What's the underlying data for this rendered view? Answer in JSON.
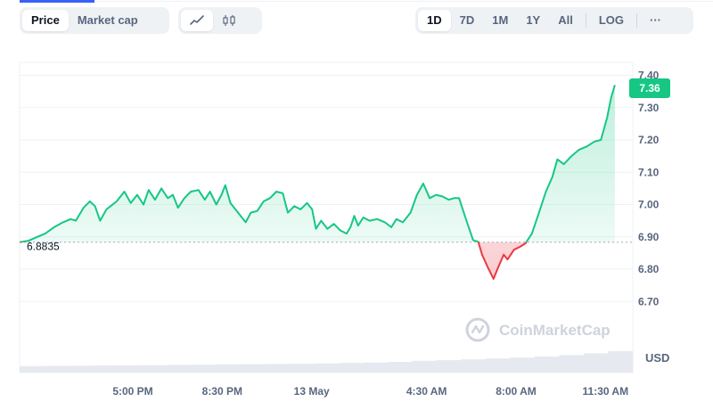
{
  "controls": {
    "metric_tabs": [
      "Price",
      "Market cap"
    ],
    "metric_active": "Price",
    "chart_types": [
      {
        "name": "line-chart",
        "icon": "line-chart-icon"
      },
      {
        "name": "candlestick-chart",
        "icon": "candlestick-icon"
      }
    ],
    "chart_type_active": "line-chart",
    "ranges": [
      "1D",
      "7D",
      "1M",
      "1Y",
      "All"
    ],
    "range_active": "1D",
    "log_label": "LOG",
    "more_label": "···"
  },
  "watermark": "CoinMarketCap",
  "colors": {
    "up_line": "#16c784",
    "down_line": "#ea3943",
    "up_fill": "#16c784",
    "down_fill": "#ea3943",
    "baseline": "#a1a7bb",
    "grid": "#eff2f5",
    "current_badge": "#16c784",
    "volume": "#e6e9ef"
  },
  "chart_data": {
    "type": "line",
    "currency_label": "USD",
    "open_price": 6.8835,
    "open_price_label": "6.8835",
    "current_price": 7.36,
    "current_price_label": "7.36",
    "ylim": [
      6.64,
      7.44
    ],
    "yticks": [
      6.7,
      6.8,
      6.9,
      7.0,
      7.1,
      7.2,
      7.3,
      7.4
    ],
    "ytick_labels": [
      "6.70",
      "6.80",
      "6.90",
      "7.00",
      "7.10",
      "7.20",
      "7.30",
      "7.40"
    ],
    "xlim": [
      0,
      24
    ],
    "xticks": [
      {
        "x": 4.43,
        "label": "5:00 PM"
      },
      {
        "x": 7.93,
        "label": "8:30 PM"
      },
      {
        "x": 11.43,
        "label": "13 May"
      },
      {
        "x": 15.93,
        "label": "4:30 AM"
      },
      {
        "x": 19.43,
        "label": "8:00 AM"
      },
      {
        "x": 22.93,
        "label": "11:30 AM"
      }
    ],
    "grid": true,
    "series": [
      {
        "values": [
          [
            0.0,
            6.8835
          ],
          [
            0.35,
            6.888
          ],
          [
            0.7,
            6.9
          ],
          [
            1.0,
            6.91
          ],
          [
            1.35,
            6.93
          ],
          [
            1.7,
            6.945
          ],
          [
            2.0,
            6.955
          ],
          [
            2.2,
            6.95
          ],
          [
            2.5,
            6.99
          ],
          [
            2.75,
            7.01
          ],
          [
            2.95,
            6.995
          ],
          [
            3.15,
            6.95
          ],
          [
            3.4,
            6.985
          ],
          [
            3.8,
            7.01
          ],
          [
            4.1,
            7.04
          ],
          [
            4.35,
            7.005
          ],
          [
            4.6,
            7.03
          ],
          [
            4.85,
            7.0
          ],
          [
            5.05,
            7.045
          ],
          [
            5.3,
            7.015
          ],
          [
            5.55,
            7.05
          ],
          [
            5.8,
            7.02
          ],
          [
            6.0,
            7.03
          ],
          [
            6.2,
            6.99
          ],
          [
            6.45,
            7.02
          ],
          [
            6.7,
            7.04
          ],
          [
            7.0,
            7.045
          ],
          [
            7.25,
            7.015
          ],
          [
            7.45,
            7.04
          ],
          [
            7.7,
            7.0
          ],
          [
            7.9,
            7.03
          ],
          [
            8.05,
            7.06
          ],
          [
            8.25,
            7.005
          ],
          [
            8.45,
            6.985
          ],
          [
            8.65,
            6.965
          ],
          [
            8.85,
            6.945
          ],
          [
            9.05,
            6.975
          ],
          [
            9.3,
            6.98
          ],
          [
            9.55,
            7.01
          ],
          [
            9.8,
            7.02
          ],
          [
            10.05,
            7.04
          ],
          [
            10.3,
            7.035
          ],
          [
            10.5,
            6.975
          ],
          [
            10.75,
            6.995
          ],
          [
            11.0,
            6.985
          ],
          [
            11.25,
            7.005
          ],
          [
            11.45,
            6.985
          ],
          [
            11.6,
            6.925
          ],
          [
            11.8,
            6.95
          ],
          [
            12.05,
            6.925
          ],
          [
            12.3,
            6.94
          ],
          [
            12.55,
            6.92
          ],
          [
            12.8,
            6.91
          ],
          [
            12.95,
            6.93
          ],
          [
            13.1,
            6.965
          ],
          [
            13.25,
            6.935
          ],
          [
            13.45,
            6.96
          ],
          [
            13.7,
            6.95
          ],
          [
            14.0,
            6.955
          ],
          [
            14.3,
            6.945
          ],
          [
            14.55,
            6.93
          ],
          [
            14.75,
            6.955
          ],
          [
            15.0,
            6.945
          ],
          [
            15.3,
            6.975
          ],
          [
            15.55,
            7.03
          ],
          [
            15.8,
            7.065
          ],
          [
            16.05,
            7.02
          ],
          [
            16.3,
            7.03
          ],
          [
            16.55,
            7.025
          ],
          [
            16.8,
            7.015
          ],
          [
            17.0,
            7.02
          ],
          [
            17.2,
            7.02
          ],
          [
            17.45,
            6.96
          ],
          [
            17.6,
            6.925
          ],
          [
            17.75,
            6.89
          ],
          [
            17.95,
            6.885
          ],
          [
            18.1,
            6.845
          ],
          [
            18.3,
            6.81
          ],
          [
            18.55,
            6.77
          ],
          [
            18.7,
            6.8
          ],
          [
            18.95,
            6.845
          ],
          [
            19.1,
            6.83
          ],
          [
            19.35,
            6.86
          ],
          [
            19.6,
            6.87
          ],
          [
            19.8,
            6.88
          ],
          [
            20.05,
            6.91
          ],
          [
            20.35,
            6.98
          ],
          [
            20.6,
            7.04
          ],
          [
            20.85,
            7.085
          ],
          [
            21.05,
            7.14
          ],
          [
            21.3,
            7.125
          ],
          [
            21.6,
            7.15
          ],
          [
            21.9,
            7.17
          ],
          [
            22.2,
            7.18
          ],
          [
            22.5,
            7.195
          ],
          [
            22.75,
            7.2
          ],
          [
            23.0,
            7.27
          ],
          [
            23.15,
            7.33
          ],
          [
            23.3,
            7.37
          ]
        ]
      }
    ],
    "volume": [
      0.3,
      0.31,
      0.32,
      0.33,
      0.34,
      0.35,
      0.36,
      0.37,
      0.38,
      0.39,
      0.4,
      0.41,
      0.43,
      0.45,
      0.47,
      0.5,
      0.55,
      0.58,
      0.62,
      0.66,
      0.7,
      0.75,
      0.82,
      0.9,
      1.0
    ]
  }
}
